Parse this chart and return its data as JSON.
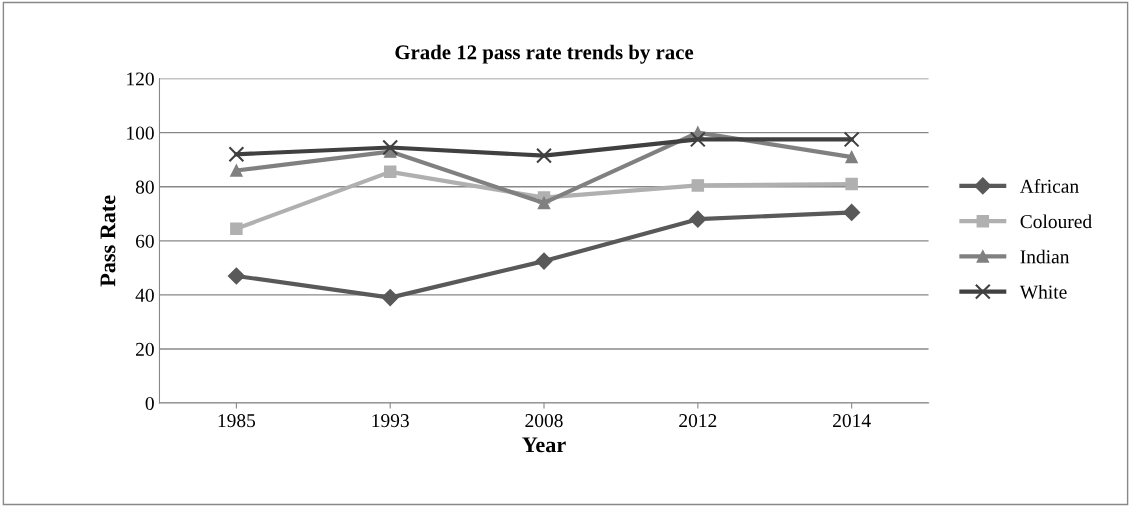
{
  "chart_data": {
    "type": "line",
    "title": "Grade 12 pass rate trends by race",
    "xlabel": "Year",
    "ylabel": "Pass Rate",
    "categories": [
      "1985",
      "1993",
      "2008",
      "2012",
      "2014"
    ],
    "series": [
      {
        "name": "African",
        "color": "#595959",
        "marker": "diamond",
        "values": [
          47,
          39,
          52.5,
          68,
          70.5
        ]
      },
      {
        "name": "Coloured",
        "color": "#b0b0b0",
        "marker": "square",
        "values": [
          64.5,
          85.5,
          76,
          80.5,
          81
        ]
      },
      {
        "name": "Indian",
        "color": "#808080",
        "marker": "triangle",
        "values": [
          86,
          93,
          74,
          100,
          91
        ]
      },
      {
        "name": "White",
        "color": "#404040",
        "marker": "cross",
        "values": [
          92,
          94.5,
          91.5,
          97.5,
          97.5
        ]
      }
    ],
    "ylim": [
      0,
      120
    ],
    "yticks": [
      0,
      20,
      40,
      60,
      80,
      100,
      120
    ],
    "grid": "y",
    "legend": "right"
  }
}
